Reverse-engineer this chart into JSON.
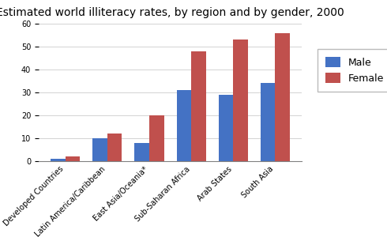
{
  "title": "Estimated world illiteracy rates, by region and by gender, 2000",
  "categories": [
    "Developed Countries",
    "Latin America/Caribbean",
    "East Asia/Oceania*",
    "Sub-Saharan Africa",
    "Arab States",
    "South Asia"
  ],
  "male_values": [
    1,
    10,
    8,
    31,
    29,
    34
  ],
  "female_values": [
    2,
    12,
    20,
    48,
    53,
    56
  ],
  "male_color": "#4472C4",
  "female_color": "#C0504D",
  "ylim": [
    0,
    60
  ],
  "yticks": [
    0,
    10,
    20,
    30,
    40,
    50,
    60
  ],
  "legend_labels": [
    "Male",
    "Female"
  ],
  "bar_width": 0.35,
  "title_fontsize": 10,
  "tick_fontsize": 7,
  "legend_fontsize": 9,
  "background_color": "#ffffff"
}
